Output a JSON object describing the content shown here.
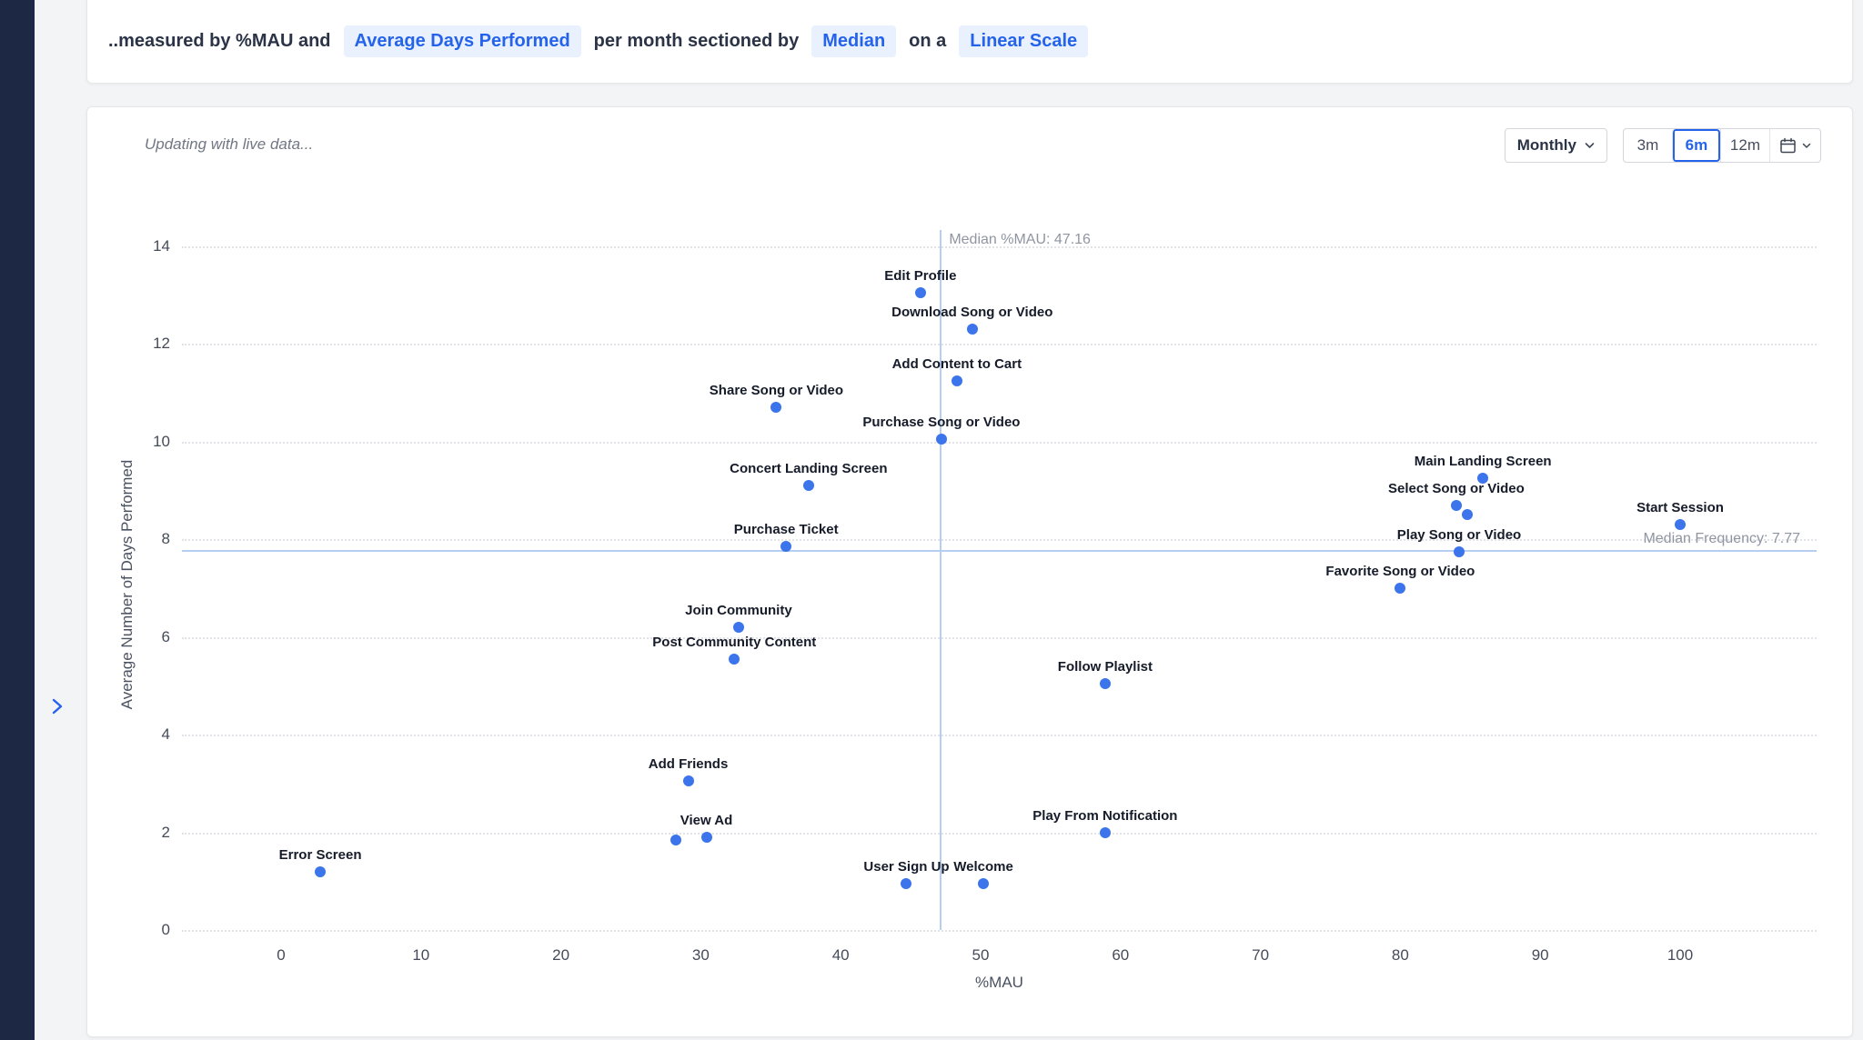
{
  "colors": {
    "accent": "#2563eb",
    "pill_bg": "#e9f1fe",
    "dot": "#3b74eb",
    "median_line": "#b7cef3",
    "sidebar": "#1d2944"
  },
  "header": {
    "prefix": "..measured by %MAU and",
    "metric": "Average Days Performed",
    "sectioned": "per month sectioned by",
    "section_by": "Median",
    "on_a": "on a",
    "scale": "Linear Scale"
  },
  "panel": {
    "status": "Updating with live data...",
    "interval": "Monthly",
    "ranges": [
      "3m",
      "6m",
      "12m"
    ],
    "selected_range": "6m"
  },
  "chart_data": {
    "type": "scatter",
    "title": "",
    "xlabel": "%MAU",
    "ylabel": "Average Number of Days Performed",
    "xlim": [
      0,
      100
    ],
    "ylim": [
      0,
      14
    ],
    "x_ticks": [
      0,
      10,
      20,
      30,
      40,
      50,
      60,
      70,
      80,
      90,
      100
    ],
    "y_ticks": [
      0,
      2,
      4,
      6,
      8,
      10,
      12,
      14
    ],
    "grid": "horizontal-dotted",
    "median_x": 47.16,
    "median_x_label": "Median %MAU: 47.16",
    "median_y": 7.77,
    "median_y_label": "Median Frequency: 7.77",
    "points": [
      {
        "label": "Edit Profile",
        "x": 45.7,
        "y": 13.05
      },
      {
        "label": "Download Song or Video",
        "x": 49.4,
        "y": 12.3
      },
      {
        "label": "Add Content to Cart",
        "x": 48.3,
        "y": 11.25
      },
      {
        "label": "Share Song or Video",
        "x": 35.4,
        "y": 10.7
      },
      {
        "label": "Purchase Song or Video",
        "x": 47.2,
        "y": 10.05
      },
      {
        "label": "Concert Landing Screen",
        "x": 37.7,
        "y": 9.1
      },
      {
        "label": "Main Landing Screen",
        "x": 85.9,
        "y": 9.25
      },
      {
        "label": "Select Song or Video",
        "x": 84.0,
        "y": 8.7
      },
      {
        "label": "",
        "x": 84.8,
        "y": 8.5
      },
      {
        "label": "Start Session",
        "x": 100,
        "y": 8.3
      },
      {
        "label": "Purchase Ticket",
        "x": 36.1,
        "y": 7.85
      },
      {
        "label": "Play Song or Video",
        "x": 84.2,
        "y": 7.75
      },
      {
        "label": "Favorite Song or Video",
        "x": 80.0,
        "y": 7.0
      },
      {
        "label": "Join Community",
        "x": 32.7,
        "y": 6.2
      },
      {
        "label": "Post Community Content",
        "x": 32.4,
        "y": 5.55
      },
      {
        "label": "Follow Playlist",
        "x": 58.9,
        "y": 5.05
      },
      {
        "label": "Add Friends",
        "x": 29.1,
        "y": 3.05
      },
      {
        "label": "View Ad",
        "x": 30.4,
        "y": 1.9
      },
      {
        "label": "",
        "x": 28.2,
        "y": 1.85
      },
      {
        "label": "Play From Notification",
        "x": 58.9,
        "y": 2.0
      },
      {
        "label": "Error Screen",
        "x": 2.8,
        "y": 1.2
      },
      {
        "label": "User Sign Up",
        "x": 44.7,
        "y": 0.95
      },
      {
        "label": "Welcome",
        "x": 50.2,
        "y": 0.95
      }
    ]
  }
}
